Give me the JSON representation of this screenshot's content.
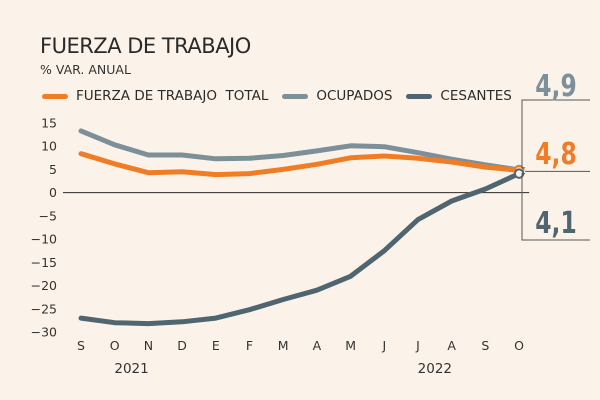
{
  "chart_data": {
    "type": "line",
    "title": "FUERZA DE TRABAJO",
    "subtitle": "% VAR. ANUAL",
    "categories": [
      "S",
      "O",
      "N",
      "D",
      "E",
      "F",
      "M",
      "A",
      "M",
      "J",
      "J",
      "A",
      "S",
      "O"
    ],
    "year_labels": [
      {
        "label": "2021",
        "index": 1.5
      },
      {
        "label": "2022",
        "index": 10.5
      }
    ],
    "ylim": [
      -30,
      15
    ],
    "yticks": [
      15,
      10,
      5,
      0,
      -5,
      -10,
      -15,
      -20,
      -25,
      -30
    ],
    "ytick_labels": [
      "15",
      "10",
      "5",
      "0",
      "−5",
      "−10",
      "−15",
      "−20",
      "−25",
      "−30"
    ],
    "grid": false,
    "legend": "top-left",
    "series": [
      {
        "name": "FUERZA DE TRABAJO  TOTAL",
        "color": "#f07d26",
        "values": [
          8.4,
          6.2,
          4.3,
          4.5,
          3.9,
          4.1,
          5.0,
          6.1,
          7.5,
          7.9,
          7.4,
          6.6,
          5.5,
          4.8
        ],
        "end_label": "4,8"
      },
      {
        "name": "OCUPADOS",
        "color": "#7d8f99",
        "values": [
          13.3,
          10.3,
          8.1,
          8.1,
          7.3,
          7.4,
          8.0,
          9.0,
          10.1,
          9.9,
          8.6,
          7.2,
          6.0,
          4.9
        ],
        "end_label": "4,9"
      },
      {
        "name": "CESANTES",
        "color": "#4f6570",
        "values": [
          -27.0,
          -28.0,
          -28.2,
          -27.8,
          -27.0,
          -25.2,
          -23.0,
          -21.0,
          -18.0,
          -12.5,
          -5.8,
          -1.8,
          0.8,
          4.1
        ],
        "end_label": "4,1"
      }
    ]
  }
}
